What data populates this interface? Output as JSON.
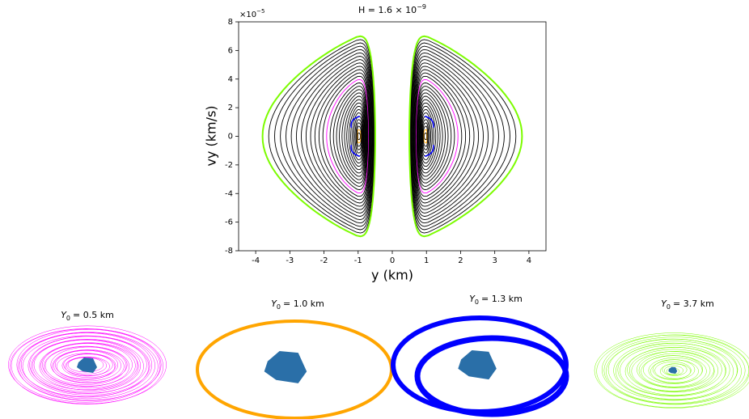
{
  "chart_data": {
    "type": "poincare-section",
    "title": {
      "base": "H = 1.6 × 10",
      "exponent": "−9"
    },
    "x_label": "y (km)",
    "y_label": "vy (km/s)",
    "y_offset": {
      "base": "×10",
      "exponent": "−5"
    },
    "xlim": [
      -4.5,
      4.5
    ],
    "ylim": [
      -8,
      8
    ],
    "xticks": [
      -4,
      -3,
      -2,
      -1,
      0,
      1,
      2,
      3,
      4
    ],
    "yticks": [
      -8,
      -6,
      -4,
      -2,
      0,
      2,
      4,
      6,
      8
    ]
  },
  "orbit_panels": [
    {
      "symbol": "Y",
      "subscript": "0",
      "text": "= 0.5 km",
      "color": "#ff00ff"
    },
    {
      "symbol": "Y",
      "subscript": "0",
      "text": "= 1.0 km",
      "color": "#ffa500"
    },
    {
      "symbol": "Y",
      "subscript": "0",
      "text": "= 1.3 km",
      "color": "#0000ff"
    },
    {
      "symbol": "Y",
      "subscript": "0",
      "text": "= 3.7 km",
      "color": "#7cfc00"
    }
  ]
}
